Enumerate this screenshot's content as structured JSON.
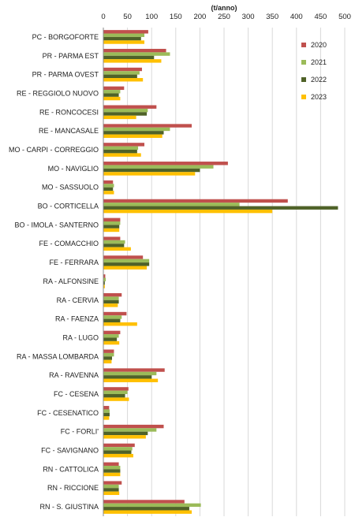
{
  "chart_data": {
    "type": "bar",
    "orientation": "horizontal",
    "axis_unit": "(t/anno)",
    "xlim": [
      0,
      500
    ],
    "x_ticks": [
      0,
      50,
      100,
      150,
      200,
      250,
      300,
      350,
      400,
      450,
      500
    ],
    "x_axis_position": "top",
    "grid": true,
    "legend_position": "top-right",
    "colors": {
      "2020": "#c0504d",
      "2021": "#9bbb59",
      "2022": "#4f6228",
      "2023": "#ffc000"
    },
    "categories": [
      "PC - BORGOFORTE",
      "PR - PARMA EST",
      "PR - PARMA OVEST",
      "RE - REGGIOLO NUOVO",
      "RE - RONCOCESI",
      "RE - MANCASALE",
      "MO - CARPI - CORREGGIO",
      "MO - NAVIGLIO",
      "MO - SASSUOLO",
      "BO - CORTICELLA",
      "BO - IMOLA - SANTERNO",
      "FE - COMACCHIO",
      "FE - FERRARA",
      "RA - ALFONSINE",
      "RA - CERVIA",
      "RA - FAENZA",
      "RA - LUGO",
      "RA - MASSA LOMBARDA",
      "RA - RAVENNA",
      "FC - CESENA",
      "FC - CESENATICO",
      "FC - FORLI'",
      "FC - SAVIGNANO",
      "RN - CATTOLICA",
      "RN - RICCIONE",
      "RN - S. GIUSTINA"
    ],
    "series": [
      {
        "name": "2020",
        "values": [
          93,
          130,
          80,
          43,
          110,
          183,
          85,
          258,
          20,
          382,
          35,
          35,
          82,
          4,
          38,
          48,
          35,
          22,
          127,
          52,
          12,
          125,
          65,
          32,
          38,
          168
        ]
      },
      {
        "name": "2021",
        "values": [
          85,
          138,
          75,
          35,
          92,
          138,
          72,
          228,
          22,
          282,
          35,
          45,
          95,
          5,
          32,
          38,
          32,
          22,
          110,
          50,
          13,
          110,
          60,
          35,
          32,
          202
        ]
      },
      {
        "name": "2022",
        "values": [
          78,
          105,
          70,
          32,
          90,
          125,
          70,
          200,
          20,
          486,
          33,
          43,
          95,
          3,
          32,
          35,
          28,
          18,
          100,
          45,
          13,
          92,
          58,
          35,
          32,
          178
        ]
      },
      {
        "name": "2023",
        "values": [
          85,
          120,
          82,
          35,
          68,
          122,
          78,
          190,
          22,
          350,
          33,
          57,
          90,
          3,
          30,
          70,
          33,
          17,
          113,
          53,
          12,
          88,
          62,
          35,
          33,
          183
        ]
      }
    ]
  }
}
